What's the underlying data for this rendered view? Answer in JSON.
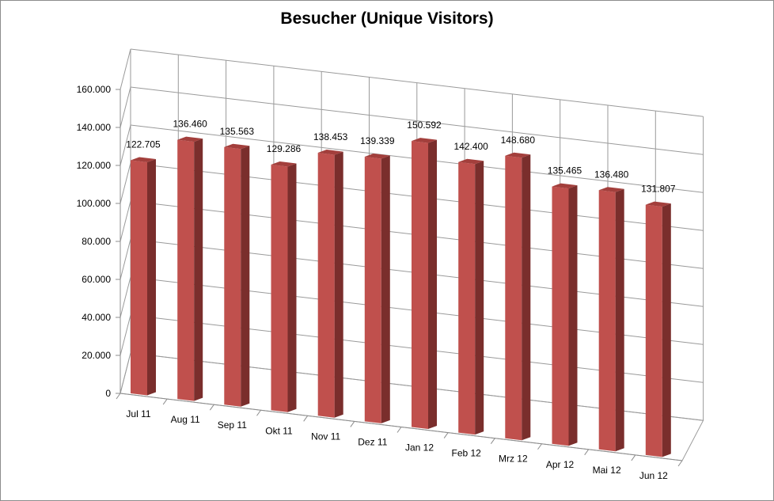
{
  "chart_data": {
    "type": "bar",
    "title": "Besucher (Unique Visitors)",
    "categories": [
      "Jul 11",
      "Aug 11",
      "Sep 11",
      "Okt 11",
      "Nov 11",
      "Dez 11",
      "Jan 12",
      "Feb 12",
      "Mrz 12",
      "Apr 12",
      "Mai 12",
      "Jun 12"
    ],
    "values": [
      122705,
      136460,
      135563,
      129286,
      138453,
      139339,
      150592,
      142400,
      148680,
      135465,
      136480,
      131807
    ],
    "value_labels": [
      "122.705",
      "136.460",
      "135.563",
      "129.286",
      "138.453",
      "139.339",
      "150.592",
      "142.400",
      "148.680",
      "135.465",
      "136.480",
      "131.807"
    ],
    "y_ticks": [
      0,
      20000,
      40000,
      60000,
      80000,
      100000,
      120000,
      140000,
      160000
    ],
    "y_tick_labels": [
      "0",
      "20.000",
      "40.000",
      "60.000",
      "80.000",
      "100.000",
      "120.000",
      "140.000",
      "160.000"
    ],
    "ylim": [
      0,
      160000
    ],
    "grid": true,
    "style": "3d-column",
    "bar_color": "#c0504d"
  }
}
